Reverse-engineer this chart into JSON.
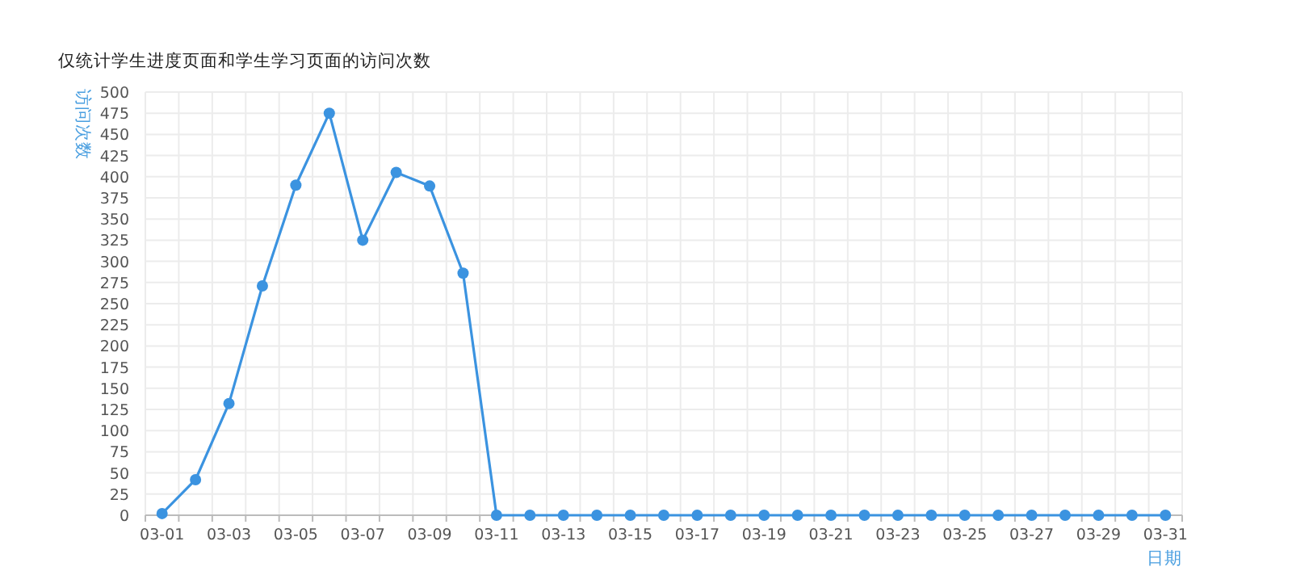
{
  "chart_data": {
    "type": "line",
    "title": "仅统计学生进度页面和学生学习页面的访问次数",
    "xlabel": "日期",
    "ylabel": "访问次数",
    "categories": [
      "03-01",
      null,
      "03-03",
      null,
      "03-05",
      null,
      "03-07",
      null,
      "03-09",
      null,
      "03-11",
      null,
      "03-13",
      null,
      "03-15",
      null,
      "03-17",
      null,
      "03-19",
      null,
      "03-21",
      null,
      "03-23",
      null,
      "03-25",
      null,
      "03-27",
      null,
      "03-29",
      null,
      "03-31"
    ],
    "series": [
      {
        "color": "#3b93e0",
        "values": [
          2,
          42,
          132,
          271,
          390,
          475,
          325,
          405,
          389,
          286,
          0,
          0,
          0,
          0,
          0,
          0,
          0,
          0,
          0,
          0,
          0,
          0,
          0,
          0,
          0,
          0,
          0,
          0,
          0,
          0,
          0
        ]
      }
    ],
    "ylim": [
      0,
      500
    ],
    "yticks": [
      0,
      25,
      50,
      75,
      100,
      125,
      150,
      175,
      200,
      225,
      250,
      275,
      300,
      325,
      350,
      375,
      400,
      425,
      450,
      475,
      500
    ],
    "grid": true,
    "marker": "circle",
    "line_style": "solid"
  }
}
